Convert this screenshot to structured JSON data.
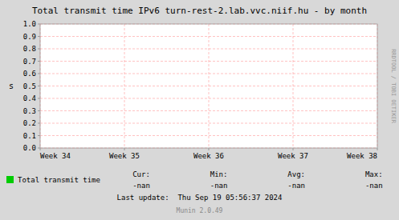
{
  "chart_data": {
    "type": "line",
    "title": "Total transmit time IPv6 turn-rest-2.lab.vvc.niif.hu - by month",
    "y_label": "s",
    "categories": [
      "Week 34",
      "Week 35",
      "Week 36",
      "Week 37",
      "Week 38"
    ],
    "series": [
      {
        "name": "Total transmit time",
        "color": "#00cc00",
        "values": [
          null,
          null,
          null,
          null,
          null
        ]
      }
    ],
    "ylim": [
      0.0,
      1.0
    ],
    "yticks": [
      {
        "value": 0.0,
        "label": "0.0"
      },
      0.1,
      0.2,
      0.3,
      0.4,
      0.5,
      0.6,
      0.7,
      0.8,
      0.9,
      {
        "value": 1.0,
        "label": "1.0"
      }
    ],
    "grid": true,
    "legend": "bottom",
    "stats": [
      {
        "label": "Cur:",
        "text": "-nan"
      },
      {
        "label": "Min:",
        "text": "-nan"
      },
      {
        "label": "Avg:",
        "text": "-nan"
      },
      {
        "label": "Max:",
        "text": "-nan"
      }
    ],
    "annotations": [
      "Last update:  Thu Sep 19 05:56:37 2024",
      "Munin 2.0.49",
      "RRDTOOL / TOBI OETIKER"
    ]
  }
}
